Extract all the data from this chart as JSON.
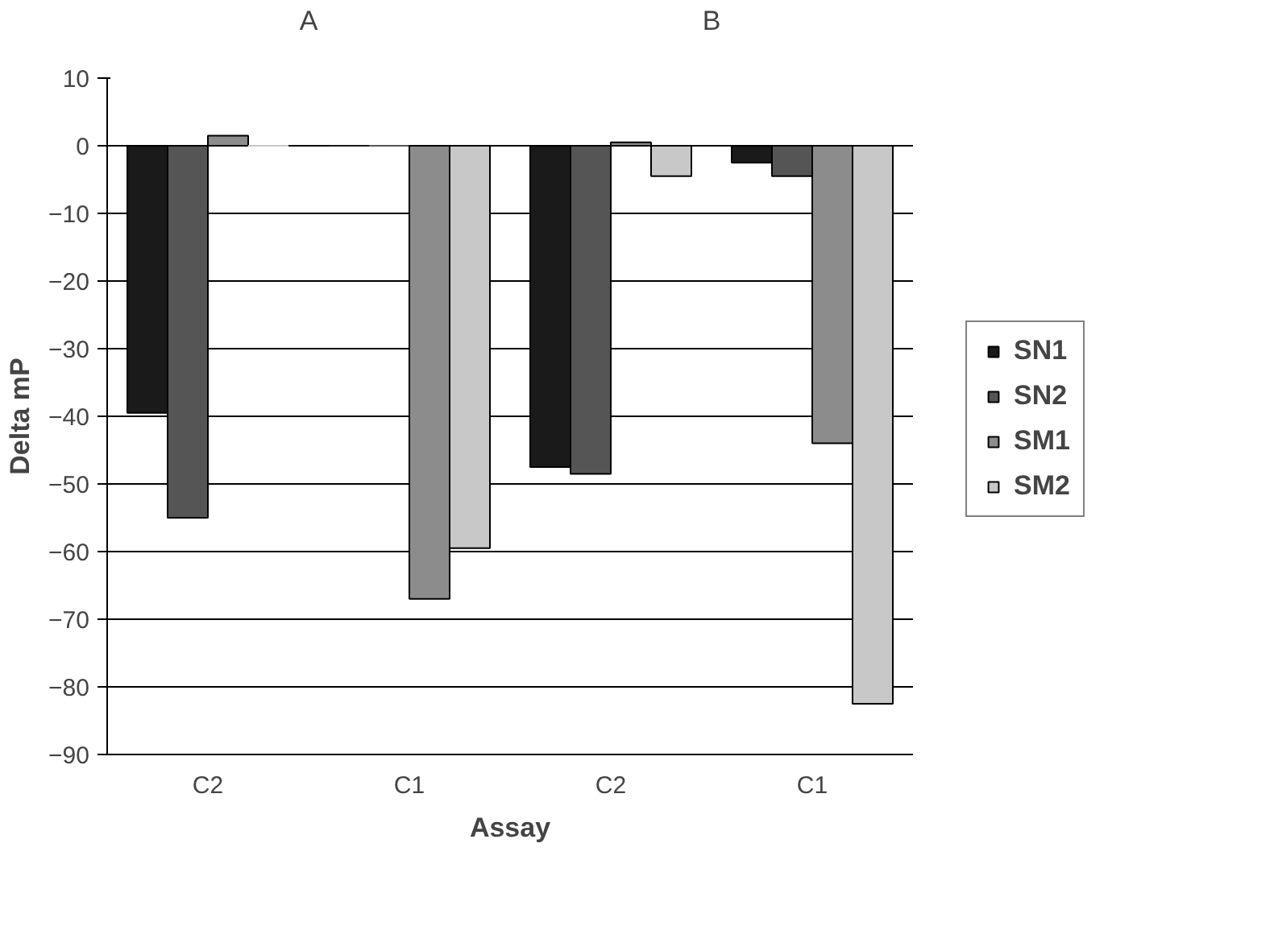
{
  "chart_data": {
    "type": "bar",
    "xlabel": "Assay",
    "ylabel": "Delta mP",
    "annotations": [
      "A",
      "B"
    ],
    "categories": [
      "C2",
      "C1",
      "C2",
      "C1"
    ],
    "series": [
      {
        "name": "SN1",
        "color": "#1a1a1a",
        "values": [
          -39.5,
          0,
          -47.5,
          -2.5
        ]
      },
      {
        "name": "SN2",
        "color": "#555555",
        "values": [
          -55,
          0,
          -48.5,
          -4.5
        ]
      },
      {
        "name": "SM1",
        "color": "#8c8c8c",
        "values": [
          1.5,
          -67,
          0.5,
          -44
        ]
      },
      {
        "name": "SM2",
        "color": "#c8c8c8",
        "values": [
          0,
          -59.5,
          -4.5,
          -82.5
        ]
      }
    ],
    "ylim": [
      -90,
      10
    ],
    "yticks": [
      -90,
      -80,
      -70,
      -60,
      -50,
      -40,
      -30,
      -20,
      -10,
      0,
      10
    ],
    "grid": "y",
    "legend": "right"
  }
}
